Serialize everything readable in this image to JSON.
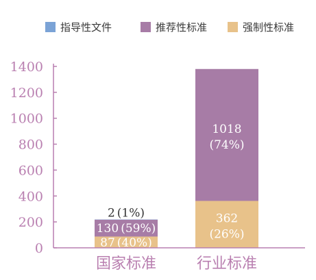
{
  "colors": {
    "axis": "#b97fb0",
    "tick_text": "#b97fb0",
    "category_text": "#b97fb0",
    "label_light": "#ffffff",
    "label_dark": "#333333"
  },
  "chart_data": {
    "type": "bar",
    "stacked": true,
    "title": "",
    "xlabel": "",
    "ylabel": "",
    "ylim": [
      0,
      1400
    ],
    "yticks": [
      0,
      200,
      400,
      600,
      800,
      1000,
      1200,
      1400
    ],
    "categories": [
      "国家标准",
      "行业标准"
    ],
    "legend_position": "top",
    "series": [
      {
        "name": "强制性标准",
        "color": "#e8c28a",
        "values": [
          87,
          362
        ],
        "value_labels": [
          "87",
          "362"
        ],
        "percent_labels": [
          "(40%)",
          "(26%)"
        ]
      },
      {
        "name": "推荐性标准",
        "color": "#a77ca6",
        "values": [
          130,
          1018
        ],
        "value_labels": [
          "130",
          "1018"
        ],
        "percent_labels": [
          "(59%)",
          "(74%)"
        ]
      },
      {
        "name": "指导性文件",
        "color": "#7ba3d6",
        "values": [
          2,
          0
        ],
        "value_labels": [
          "2",
          ""
        ],
        "percent_labels": [
          "(1%)",
          ""
        ]
      }
    ],
    "legend_order": [
      2,
      1,
      0
    ]
  }
}
